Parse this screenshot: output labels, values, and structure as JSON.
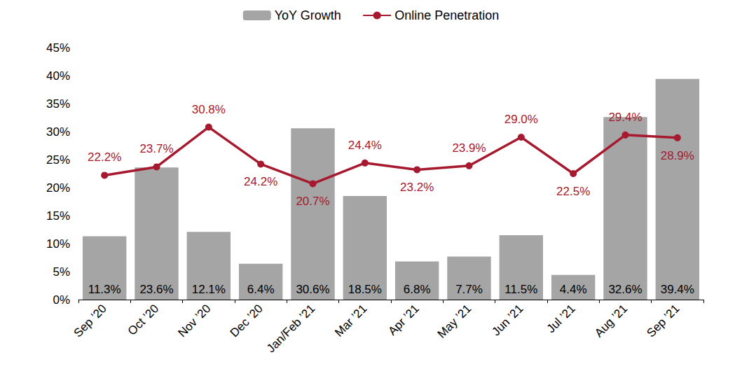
{
  "chart_data": {
    "type": "bar",
    "categories": [
      "Sep ’20",
      "Oct ’20",
      "Nov ’20",
      "Dec ’20",
      "Jan/Feb ’21",
      "Mar ’21",
      "Apr ’21",
      "May ’21",
      "Jun ’21",
      "Jul ’21",
      "Aug ’21",
      "Sep ’21"
    ],
    "series": [
      {
        "name": "YoY Growth",
        "type": "bar",
        "color": "#a5a5a5",
        "values": [
          11.3,
          23.6,
          12.1,
          6.4,
          30.6,
          18.5,
          6.8,
          7.7,
          11.5,
          4.4,
          32.6,
          39.4
        ],
        "value_labels": [
          "11.3%",
          "23.6%",
          "12.1%",
          "6.4%",
          "30.6%",
          "18.5%",
          "6.8%",
          "7.7%",
          "11.5%",
          "4.4%",
          "32.6%",
          "39.4%"
        ]
      },
      {
        "name": "Online Penetration",
        "type": "line",
        "color": "#a6192e",
        "marker": "circle",
        "values": [
          22.2,
          23.7,
          30.8,
          24.2,
          20.7,
          24.4,
          23.2,
          23.9,
          29.0,
          22.5,
          29.4,
          28.9
        ],
        "value_labels": [
          "22.2%",
          "23.7%",
          "30.8%",
          "24.2%",
          "20.7%",
          "24.4%",
          "23.2%",
          "23.9%",
          "29.0%",
          "22.5%",
          "29.4%",
          "28.9%"
        ]
      }
    ],
    "ylim": [
      0,
      45
    ],
    "yticks": [
      {
        "value": 0,
        "label": "0%"
      },
      {
        "value": 5,
        "label": "5%"
      },
      {
        "value": 10,
        "label": "10%"
      },
      {
        "value": 15,
        "label": "15%"
      },
      {
        "value": 20,
        "label": "20%"
      },
      {
        "value": 25,
        "label": "25%"
      },
      {
        "value": 30,
        "label": "30%"
      },
      {
        "value": 35,
        "label": "35%"
      },
      {
        "value": 40,
        "label": "40%"
      },
      {
        "value": 45,
        "label": "45%"
      }
    ],
    "grid": false,
    "legend": "top",
    "data_labels": true
  }
}
